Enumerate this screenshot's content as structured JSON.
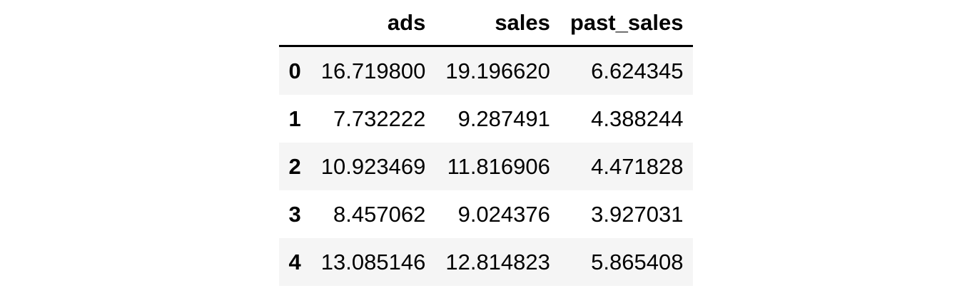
{
  "table": {
    "corner_label": "",
    "columns": [
      "ads",
      "sales",
      "past_sales"
    ],
    "rows": [
      {
        "index": "0",
        "cells": [
          "16.719800",
          "19.196620",
          "6.624345"
        ]
      },
      {
        "index": "1",
        "cells": [
          "7.732222",
          "9.287491",
          "4.388244"
        ]
      },
      {
        "index": "2",
        "cells": [
          "10.923469",
          "11.816906",
          "4.471828"
        ]
      },
      {
        "index": "3",
        "cells": [
          "8.457062",
          "9.024376",
          "3.927031"
        ]
      },
      {
        "index": "4",
        "cells": [
          "13.085146",
          "12.814823",
          "5.865408"
        ]
      }
    ],
    "colors": {
      "stripe": "#f5f5f5",
      "header_border": "#000000",
      "text": "#000000",
      "background": "#ffffff"
    }
  }
}
